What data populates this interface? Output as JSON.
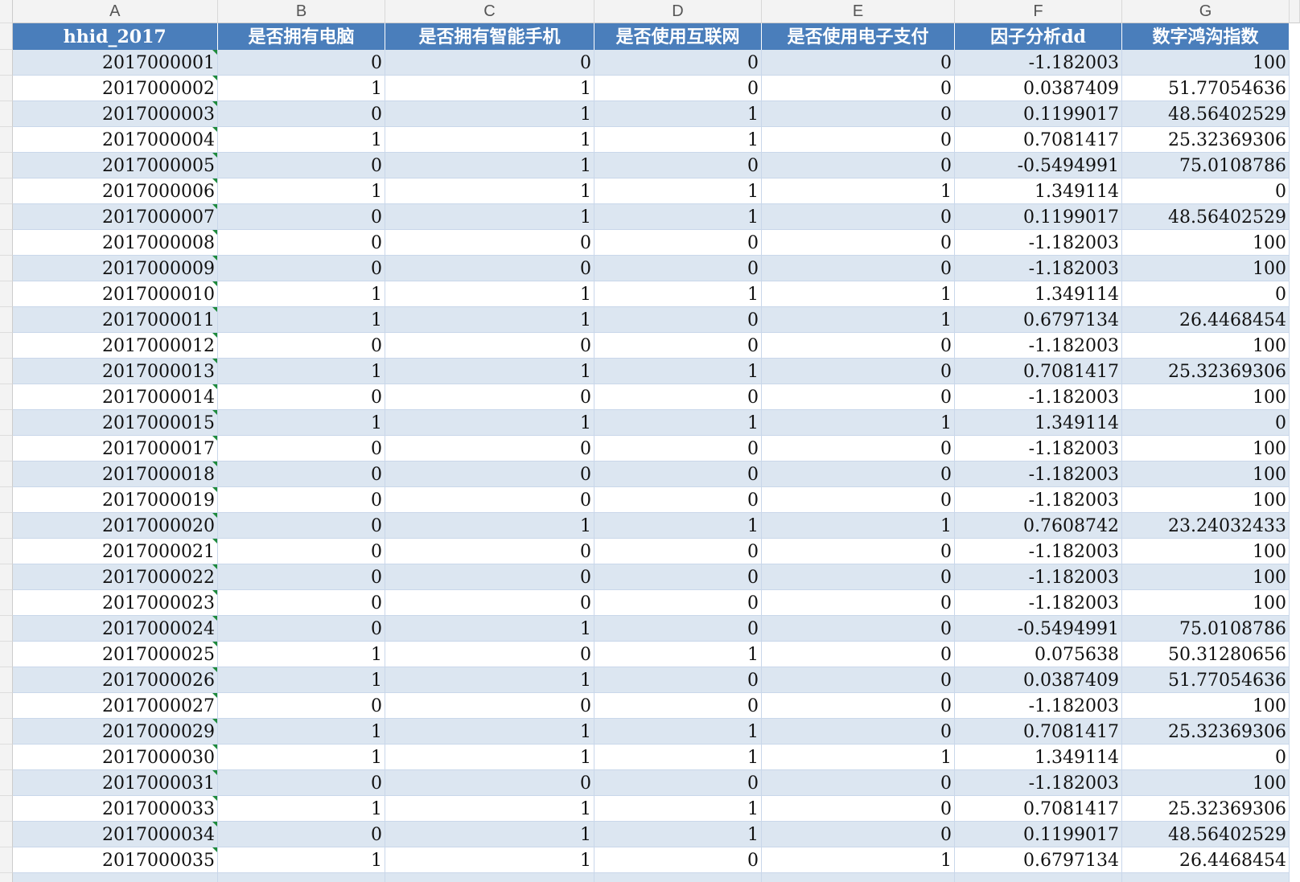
{
  "column_letters": [
    "A",
    "B",
    "C",
    "D",
    "E",
    "F",
    "G"
  ],
  "table": {
    "header": [
      "hhid_2017",
      "是否拥有电脑",
      "是否拥有智能手机",
      "是否使用互联网",
      "是否使用电子支付",
      "因子分析dd",
      "数字鸿沟指数"
    ],
    "rows": [
      [
        2017000001,
        0,
        0,
        0,
        0,
        -1.182003,
        100
      ],
      [
        2017000002,
        1,
        1,
        0,
        0,
        0.0387409,
        51.77054636
      ],
      [
        2017000003,
        0,
        1,
        1,
        0,
        0.1199017,
        48.56402529
      ],
      [
        2017000004,
        1,
        1,
        1,
        0,
        0.7081417,
        25.32369306
      ],
      [
        2017000005,
        0,
        1,
        0,
        0,
        -0.5494991,
        75.0108786
      ],
      [
        2017000006,
        1,
        1,
        1,
        1,
        1.349114,
        0
      ],
      [
        2017000007,
        0,
        1,
        1,
        0,
        0.1199017,
        48.56402529
      ],
      [
        2017000008,
        0,
        0,
        0,
        0,
        -1.182003,
        100
      ],
      [
        2017000009,
        0,
        0,
        0,
        0,
        -1.182003,
        100
      ],
      [
        2017000010,
        1,
        1,
        1,
        1,
        1.349114,
        0
      ],
      [
        2017000011,
        1,
        1,
        0,
        1,
        0.6797134,
        26.4468454
      ],
      [
        2017000012,
        0,
        0,
        0,
        0,
        -1.182003,
        100
      ],
      [
        2017000013,
        1,
        1,
        1,
        0,
        0.7081417,
        25.32369306
      ],
      [
        2017000014,
        0,
        0,
        0,
        0,
        -1.182003,
        100
      ],
      [
        2017000015,
        1,
        1,
        1,
        1,
        1.349114,
        0
      ],
      [
        2017000017,
        0,
        0,
        0,
        0,
        -1.182003,
        100
      ],
      [
        2017000018,
        0,
        0,
        0,
        0,
        -1.182003,
        100
      ],
      [
        2017000019,
        0,
        0,
        0,
        0,
        -1.182003,
        100
      ],
      [
        2017000020,
        0,
        1,
        1,
        1,
        0.7608742,
        23.24032433
      ],
      [
        2017000021,
        0,
        0,
        0,
        0,
        -1.182003,
        100
      ],
      [
        2017000022,
        0,
        0,
        0,
        0,
        -1.182003,
        100
      ],
      [
        2017000023,
        0,
        0,
        0,
        0,
        -1.182003,
        100
      ],
      [
        2017000024,
        0,
        1,
        0,
        0,
        -0.5494991,
        75.0108786
      ],
      [
        2017000025,
        1,
        0,
        1,
        0,
        0.075638,
        50.31280656
      ],
      [
        2017000026,
        1,
        1,
        0,
        0,
        0.0387409,
        51.77054636
      ],
      [
        2017000027,
        0,
        0,
        0,
        0,
        -1.182003,
        100
      ],
      [
        2017000029,
        1,
        1,
        1,
        0,
        0.7081417,
        25.32369306
      ],
      [
        2017000030,
        1,
        1,
        1,
        1,
        1.349114,
        0
      ],
      [
        2017000031,
        0,
        0,
        0,
        0,
        -1.182003,
        100
      ],
      [
        2017000033,
        1,
        1,
        1,
        0,
        0.7081417,
        25.32369306
      ],
      [
        2017000034,
        0,
        1,
        1,
        0,
        0.1199017,
        48.56402529
      ],
      [
        2017000035,
        1,
        1,
        0,
        1,
        0.6797134,
        26.4468454
      ]
    ]
  }
}
